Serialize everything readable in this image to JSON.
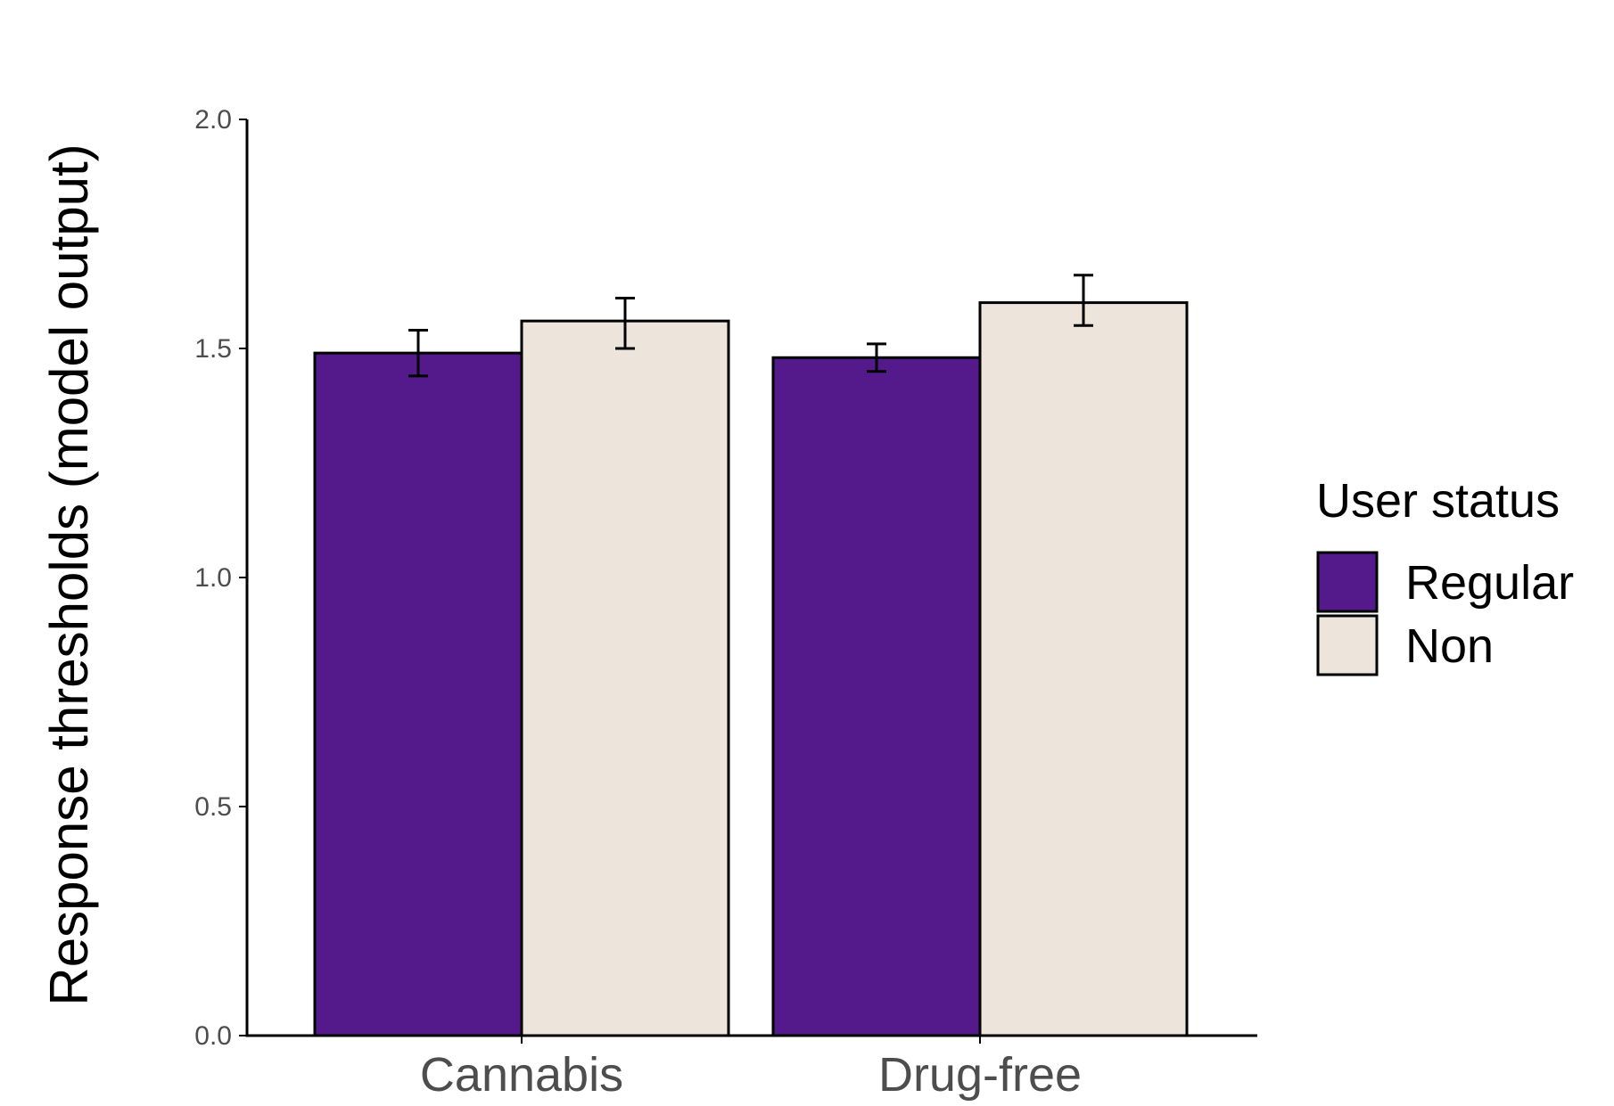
{
  "chart_data": {
    "type": "bar",
    "title": "",
    "xlabel": "",
    "ylabel": "Response thresholds (model output)",
    "ylim": [
      0,
      2.0
    ],
    "yticks": [
      0.0,
      0.5,
      1.0,
      1.5,
      2.0
    ],
    "ytick_labels": [
      "0.0",
      "0.5",
      "1.0",
      "1.5",
      "2.0"
    ],
    "categories": [
      "Cannabis",
      "Drug-free"
    ],
    "series": [
      {
        "name": "Regular",
        "color": "#541a8b",
        "values": [
          1.49,
          1.48
        ],
        "error_low": [
          1.44,
          1.45
        ],
        "error_high": [
          1.54,
          1.51
        ]
      },
      {
        "name": "Non",
        "color": "#ede4dc",
        "values": [
          1.56,
          1.6
        ],
        "error_low": [
          1.5,
          1.55
        ],
        "error_high": [
          1.61,
          1.66
        ]
      }
    ],
    "legend": {
      "title": "User status",
      "placement": "right"
    },
    "grid": false
  }
}
